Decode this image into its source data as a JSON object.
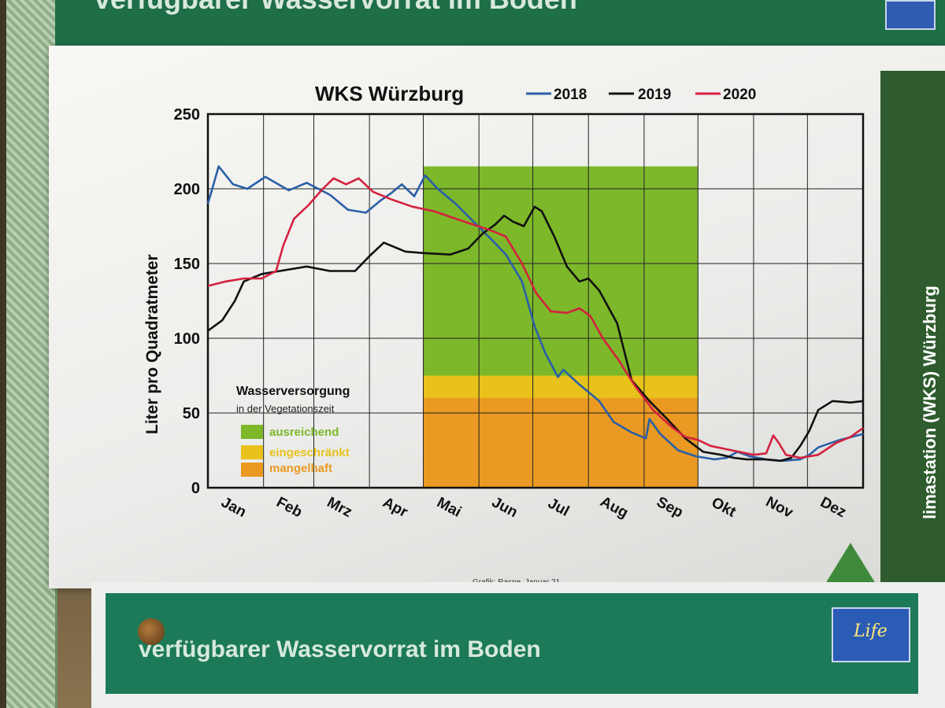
{
  "sign_top": {
    "title": "verfügbarer Wasservorrat im Boden"
  },
  "sign_bottom": {
    "title": "verfügbarer Wasservorrat im Boden",
    "logo_text": "Life"
  },
  "side_panel": {
    "text": "limastation (WKS) Würzburg"
  },
  "credit": "Grafik: Raspe, Januar 21",
  "colors": {
    "series_2018": "#2a5fa6",
    "series_2019": "#111111",
    "series_2020": "#d4213e",
    "ausreichend": "#7cb82a",
    "eingeschraenkt": "#e8c21a",
    "mangelhaft": "#ea9a22",
    "sign_green": "#1d7a58"
  },
  "chart_data": {
    "type": "line",
    "title": "WKS Würzburg",
    "xlabel": "",
    "ylabel": "Liter pro Quadratmeter",
    "ylim": [
      0,
      250
    ],
    "yticks": [
      "0",
      "50",
      "100",
      "150",
      "200",
      "250"
    ],
    "month_ticks": [
      "Jan",
      "Feb",
      "Mrz",
      "Apr",
      "Mai",
      "Jun",
      "Jul",
      "Aug",
      "Sep",
      "Okt",
      "Nov",
      "Dez"
    ],
    "grid": true,
    "legend_position": "top-right",
    "series": [
      {
        "name": "2018",
        "points": [
          [
            0,
            190
          ],
          [
            6,
            215
          ],
          [
            14,
            203
          ],
          [
            22,
            200
          ],
          [
            32,
            208
          ],
          [
            45,
            199
          ],
          [
            55,
            204
          ],
          [
            68,
            196
          ],
          [
            78,
            186
          ],
          [
            88,
            184
          ],
          [
            96,
            192
          ],
          [
            102,
            197
          ],
          [
            108,
            203
          ],
          [
            115,
            195
          ],
          [
            121,
            209
          ],
          [
            128,
            200
          ],
          [
            138,
            190
          ],
          [
            148,
            178
          ],
          [
            158,
            166
          ],
          [
            166,
            156
          ],
          [
            175,
            138
          ],
          [
            182,
            108
          ],
          [
            188,
            90
          ],
          [
            195,
            74
          ],
          [
            198,
            79
          ],
          [
            206,
            70
          ],
          [
            218,
            58
          ],
          [
            226,
            44
          ],
          [
            236,
            37
          ],
          [
            244,
            33
          ],
          [
            246,
            46
          ],
          [
            252,
            36
          ],
          [
            262,
            25
          ],
          [
            272,
            21
          ],
          [
            282,
            19
          ],
          [
            289,
            20
          ],
          [
            295,
            24
          ],
          [
            302,
            21
          ],
          [
            311,
            19
          ],
          [
            320,
            18
          ],
          [
            330,
            19
          ],
          [
            335,
            22
          ],
          [
            340,
            27
          ],
          [
            352,
            32
          ],
          [
            365,
            36
          ]
        ]
      },
      {
        "name": "2019",
        "points": [
          [
            0,
            105
          ],
          [
            8,
            112
          ],
          [
            15,
            125
          ],
          [
            20,
            138
          ],
          [
            30,
            143
          ],
          [
            40,
            145
          ],
          [
            55,
            148
          ],
          [
            68,
            145
          ],
          [
            82,
            145
          ],
          [
            90,
            155
          ],
          [
            98,
            164
          ],
          [
            110,
            158
          ],
          [
            120,
            157
          ],
          [
            135,
            156
          ],
          [
            145,
            160
          ],
          [
            153,
            170
          ],
          [
            160,
            176
          ],
          [
            165,
            182
          ],
          [
            170,
            178
          ],
          [
            176,
            175
          ],
          [
            182,
            188
          ],
          [
            186,
            185
          ],
          [
            193,
            168
          ],
          [
            200,
            148
          ],
          [
            207,
            138
          ],
          [
            212,
            140
          ],
          [
            218,
            132
          ],
          [
            228,
            110
          ],
          [
            236,
            72
          ],
          [
            246,
            58
          ],
          [
            255,
            47
          ],
          [
            266,
            33
          ],
          [
            276,
            24
          ],
          [
            286,
            22
          ],
          [
            293,
            20
          ],
          [
            300,
            19
          ],
          [
            310,
            19
          ],
          [
            319,
            18
          ],
          [
            325,
            20
          ],
          [
            330,
            28
          ],
          [
            335,
            38
          ],
          [
            340,
            52
          ],
          [
            348,
            58
          ],
          [
            358,
            57
          ],
          [
            365,
            58
          ]
        ]
      },
      {
        "name": "2020",
        "points": [
          [
            0,
            135
          ],
          [
            10,
            138
          ],
          [
            20,
            140
          ],
          [
            30,
            140
          ],
          [
            38,
            145
          ],
          [
            42,
            162
          ],
          [
            48,
            180
          ],
          [
            56,
            189
          ],
          [
            64,
            200
          ],
          [
            70,
            207
          ],
          [
            77,
            203
          ],
          [
            84,
            207
          ],
          [
            92,
            198
          ],
          [
            102,
            193
          ],
          [
            114,
            188
          ],
          [
            126,
            185
          ],
          [
            138,
            180
          ],
          [
            148,
            176
          ],
          [
            158,
            172
          ],
          [
            166,
            168
          ],
          [
            175,
            150
          ],
          [
            183,
            130
          ],
          [
            191,
            118
          ],
          [
            200,
            117
          ],
          [
            207,
            120
          ],
          [
            213,
            115
          ],
          [
            220,
            100
          ],
          [
            229,
            85
          ],
          [
            238,
            68
          ],
          [
            248,
            52
          ],
          [
            258,
            41
          ],
          [
            266,
            34
          ],
          [
            273,
            32
          ],
          [
            280,
            28
          ],
          [
            288,
            26
          ],
          [
            296,
            24
          ],
          [
            304,
            22
          ],
          [
            311,
            23
          ],
          [
            315,
            35
          ],
          [
            318,
            30
          ],
          [
            322,
            22
          ],
          [
            330,
            20
          ],
          [
            340,
            22
          ],
          [
            350,
            30
          ],
          [
            358,
            34
          ],
          [
            365,
            40
          ]
        ]
      }
    ],
    "legend_box": {
      "title": "Wasserversorgung",
      "subtitle": "in der Vegetationszeit",
      "items": [
        "ausreichend",
        "eingeschränkt",
        "mangelhaft"
      ]
    },
    "vegetation_zones": [
      {
        "label": "ausreichend",
        "from": 75,
        "to": 215
      },
      {
        "label": "eingeschränkt",
        "from": 60,
        "to": 75
      },
      {
        "label": "mangelhaft",
        "from": 0,
        "to": 60
      }
    ]
  }
}
